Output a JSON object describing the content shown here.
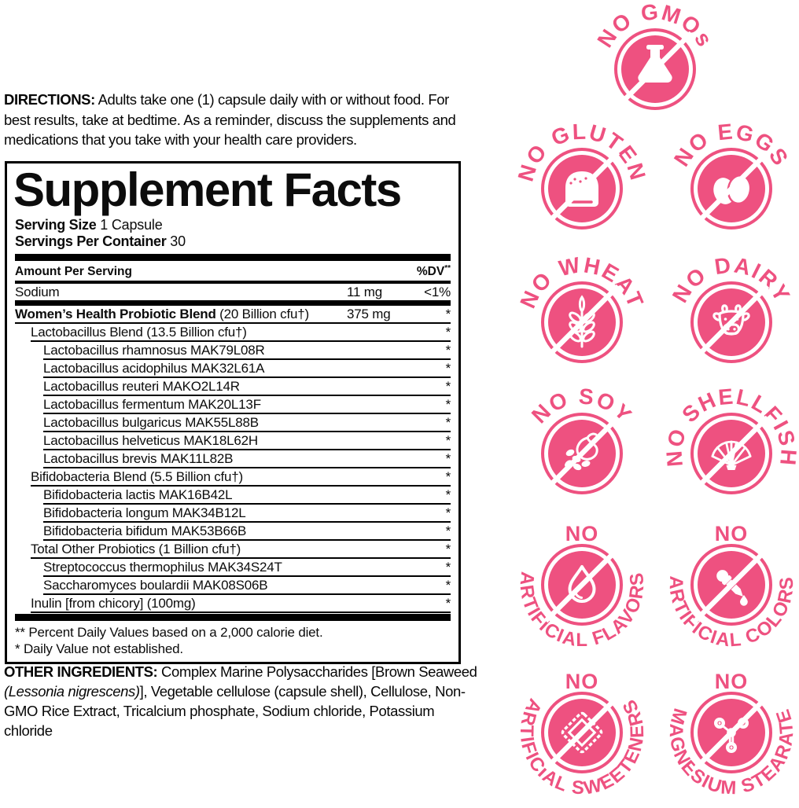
{
  "directions": {
    "label": "DIRECTIONS:",
    "text": " Adults take one (1) capsule daily with or without food. For best results, take at bedtime. As a reminder, discuss the supplements and medications that you take with your health care providers."
  },
  "supplement_facts": {
    "title": "Supplement Facts",
    "serving_size_label": "Serving Size",
    "serving_size_value": "1 Capsule",
    "servings_per_container_label": "Servings Per Container",
    "servings_per_container_value": "30",
    "columns": {
      "amount_header": "Amount Per Serving",
      "dv_header": "%DV",
      "dv_header_sup": "**"
    },
    "sodium": {
      "name": "Sodium",
      "amount": "11 mg",
      "dv": "<1%"
    },
    "main_blend": {
      "name_bold": "Women’s Health Probiotic Blend",
      "name_rest": " (20 Billion cfu†)",
      "amount": "375 mg",
      "dv": "*"
    },
    "rows": [
      {
        "name": "Lactobacillus Blend (13.5 Billion cfu†)",
        "dv": "*",
        "indent": 1
      },
      {
        "name": "Lactobacillus rhamnosus MAK79L08R",
        "dv": "*",
        "indent": 2
      },
      {
        "name": "Lactobacillus acidophilus MAK32L61A",
        "dv": "*",
        "indent": 2
      },
      {
        "name": "Lactobacillus reuteri MAKO2L14R",
        "dv": "*",
        "indent": 2
      },
      {
        "name": "Lactobacillus fermentum MAK20L13F",
        "dv": "*",
        "indent": 2
      },
      {
        "name": "Lactobacillus bulgaricus MAK55L88B",
        "dv": "*",
        "indent": 2
      },
      {
        "name": "Lactobacillus helveticus MAK18L62H",
        "dv": "*",
        "indent": 2
      },
      {
        "name": "Lactobacillus brevis MAK11L82B",
        "dv": "*",
        "indent": 2
      },
      {
        "name": "Bifidobacteria Blend (5.5 Billion cfu†)",
        "dv": "*",
        "indent": 1
      },
      {
        "name": "Bifidobacteria lactis MAK16B42L",
        "dv": "*",
        "indent": 2
      },
      {
        "name": "Bifidobacteria longum MAK34B12L",
        "dv": "*",
        "indent": 2
      },
      {
        "name": "Bifidobacteria bifidum MAK53B66B",
        "dv": "*",
        "indent": 2
      },
      {
        "name": "Total Other Probiotics (1 Billion cfu†)",
        "dv": "*",
        "indent": 1
      },
      {
        "name": "Streptococcus thermophilus MAK34S24T",
        "dv": "*",
        "indent": 2
      },
      {
        "name": "Saccharomyces boulardii MAK08S06B",
        "dv": "*",
        "indent": 2
      },
      {
        "name": "Inulin [from chicory] (100mg)",
        "dv": "*",
        "indent": 1
      }
    ],
    "footnotes": [
      "** Percent Daily Values based on a 2,000 calorie diet.",
      "* Daily Value not established."
    ]
  },
  "other_ingredients": {
    "label": "OTHER INGREDIENTS:",
    "text_start": " Complex Marine Polysaccharides [Brown Seaweed ",
    "italic": "(Lessonia nigrescens)",
    "text_end": "], Vegetable cellulose (capsule shell), Cellulose, Non-GMO Rice Extract, Tricalcium phosphate, Sodium chloride, Potassium chloride"
  },
  "badges": {
    "accent_color": "#EE5180",
    "items": [
      {
        "id": "no-gmos",
        "icon": "flask-icon",
        "arc_top": "NO GMOs"
      },
      {
        "id": "no-gluten",
        "icon": "bread-icon",
        "arc_top": "NO GLUTEN"
      },
      {
        "id": "no-eggs",
        "icon": "eggs-icon",
        "arc_top": "NO EGGS"
      },
      {
        "id": "no-wheat",
        "icon": "wheat-icon",
        "arc_top": "NO WHEAT"
      },
      {
        "id": "no-dairy",
        "icon": "cow-icon",
        "arc_top": "NO DAIRY"
      },
      {
        "id": "no-soy",
        "icon": "soybean-icon",
        "arc_top": "NO SOY"
      },
      {
        "id": "no-shellfish",
        "icon": "shell-icon",
        "arc_top": "NO SHELLFISH"
      },
      {
        "id": "no-artificial-flavors",
        "icon": "droplet-icon",
        "word_top": "NO",
        "arc_bottom": "ARTIFICIAL FLAVORS"
      },
      {
        "id": "no-artificial-colors",
        "icon": "dropper-icon",
        "word_top": "NO",
        "arc_bottom": "ARTIFICIAL COLORS"
      },
      {
        "id": "no-artificial-sweeteners",
        "icon": "sweetener-packet-icon",
        "word_top": "NO",
        "arc_bottom": "ARTIFICIAL SWEETENERS"
      },
      {
        "id": "no-magnesium-stearate",
        "icon": "molecule-icon",
        "word_top": "NO",
        "arc_bottom": "MAGNESIUM STEARATE"
      }
    ]
  }
}
